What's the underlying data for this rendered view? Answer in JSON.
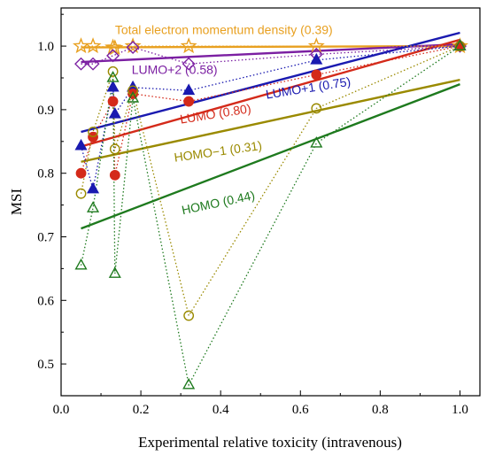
{
  "chart_data": {
    "type": "scatter",
    "xlabel": "Experimental relative toxicity (intravenous)",
    "ylabel": "MSI",
    "xlim": [
      0.0,
      1.05
    ],
    "ylim": [
      0.45,
      1.06
    ],
    "x_ticks": [
      "0.0",
      "0.2",
      "0.4",
      "0.6",
      "0.8",
      "1.0"
    ],
    "x_tick_values": [
      0.0,
      0.2,
      0.4,
      0.6,
      0.8,
      1.0
    ],
    "y_ticks": [
      "0.5",
      "0.6",
      "0.7",
      "0.8",
      "0.9",
      "1.0"
    ],
    "y_tick_values": [
      0.5,
      0.6,
      0.7,
      0.8,
      0.9,
      1.0
    ],
    "grid": false,
    "series": [
      {
        "name": "Total electron momentum density (0.39)",
        "color": "#E8A020",
        "marker": "star",
        "fill": "open",
        "points": [
          [
            0.05,
            1.0
          ],
          [
            0.08,
            1.0
          ],
          [
            0.13,
            0.998
          ],
          [
            0.135,
            0.997
          ],
          [
            0.18,
            1.0
          ],
          [
            0.32,
            1.0
          ],
          [
            0.64,
            1.0
          ],
          [
            1.0,
            1.0
          ]
        ],
        "fit": [
          [
            0.05,
            0.998
          ],
          [
            1.0,
            1.0
          ]
        ]
      },
      {
        "name": "LUMO+2 (0.58)",
        "color": "#7B1FA2",
        "marker": "diamond",
        "fill": "open",
        "points": [
          [
            0.05,
            0.972
          ],
          [
            0.08,
            0.972
          ],
          [
            0.13,
            0.985
          ],
          [
            0.18,
            0.998
          ],
          [
            0.32,
            0.972
          ],
          [
            0.64,
            0.987
          ],
          [
            1.0,
            1.0
          ]
        ],
        "fit": [
          [
            0.05,
            0.975
          ],
          [
            1.0,
            1.003
          ]
        ]
      },
      {
        "name": "LUMO+1 (0.75)",
        "color": "#1A1AB0",
        "marker": "triangle",
        "fill": "filled",
        "points": [
          [
            0.05,
            0.843
          ],
          [
            0.08,
            0.775
          ],
          [
            0.13,
            0.935
          ],
          [
            0.135,
            0.893
          ],
          [
            0.18,
            0.935
          ],
          [
            0.32,
            0.93
          ],
          [
            0.64,
            0.978
          ],
          [
            1.0,
            1.0
          ]
        ],
        "fit": [
          [
            0.05,
            0.865
          ],
          [
            1.0,
            1.021
          ]
        ]
      },
      {
        "name": "LUMO (0.80)",
        "color": "#D42A1A",
        "marker": "circle",
        "fill": "filled",
        "points": [
          [
            0.05,
            0.8
          ],
          [
            0.08,
            0.857
          ],
          [
            0.13,
            0.913
          ],
          [
            0.135,
            0.797
          ],
          [
            0.18,
            0.925
          ],
          [
            0.32,
            0.913
          ],
          [
            0.64,
            0.955
          ],
          [
            1.0,
            1.0
          ]
        ],
        "fit": [
          [
            0.05,
            0.842
          ],
          [
            1.0,
            1.01
          ]
        ]
      },
      {
        "name": "HOMO−1 (0.31)",
        "color": "#9A8A00",
        "marker": "circle",
        "fill": "open",
        "points": [
          [
            0.05,
            0.768
          ],
          [
            0.08,
            0.865
          ],
          [
            0.13,
            0.96
          ],
          [
            0.135,
            0.838
          ],
          [
            0.18,
            0.93
          ],
          [
            0.32,
            0.576
          ],
          [
            0.64,
            0.902
          ],
          [
            1.0,
            1.0
          ]
        ],
        "fit": [
          [
            0.05,
            0.818
          ],
          [
            1.0,
            0.947
          ]
        ]
      },
      {
        "name": "HOMO (0.44)",
        "color": "#1E7A1E",
        "marker": "triangle",
        "fill": "open",
        "points": [
          [
            0.05,
            0.655
          ],
          [
            0.08,
            0.745
          ],
          [
            0.13,
            0.95
          ],
          [
            0.135,
            0.642
          ],
          [
            0.18,
            0.918
          ],
          [
            0.32,
            0.467
          ],
          [
            0.64,
            0.847
          ],
          [
            1.0,
            1.0
          ]
        ],
        "fit": [
          [
            0.05,
            0.713
          ],
          [
            1.0,
            0.94
          ]
        ]
      }
    ],
    "annotations": [
      {
        "text": "Total electron momentum density (0.39)",
        "color": "#E8A020",
        "x": 0.135,
        "y": 1.019,
        "rotate": 0
      },
      {
        "text": "LUMO+2 (0.58)",
        "color": "#7B1FA2",
        "x": 0.177,
        "y": 0.956,
        "rotate": 0
      },
      {
        "text": "LUMO+1 (0.75)",
        "color": "#1A1AB0",
        "x": 0.515,
        "y": 0.917,
        "rotate": -9
      },
      {
        "text": "LUMO (0.80)",
        "color": "#D42A1A",
        "x": 0.3,
        "y": 0.878,
        "rotate": -9
      },
      {
        "text": "HOMO−1 (0.31)",
        "color": "#9A8A00",
        "x": 0.285,
        "y": 0.818,
        "rotate": -8
      },
      {
        "text": "HOMO (0.44)",
        "color": "#1E7A1E",
        "x": 0.305,
        "y": 0.735,
        "rotate": -12
      }
    ]
  }
}
